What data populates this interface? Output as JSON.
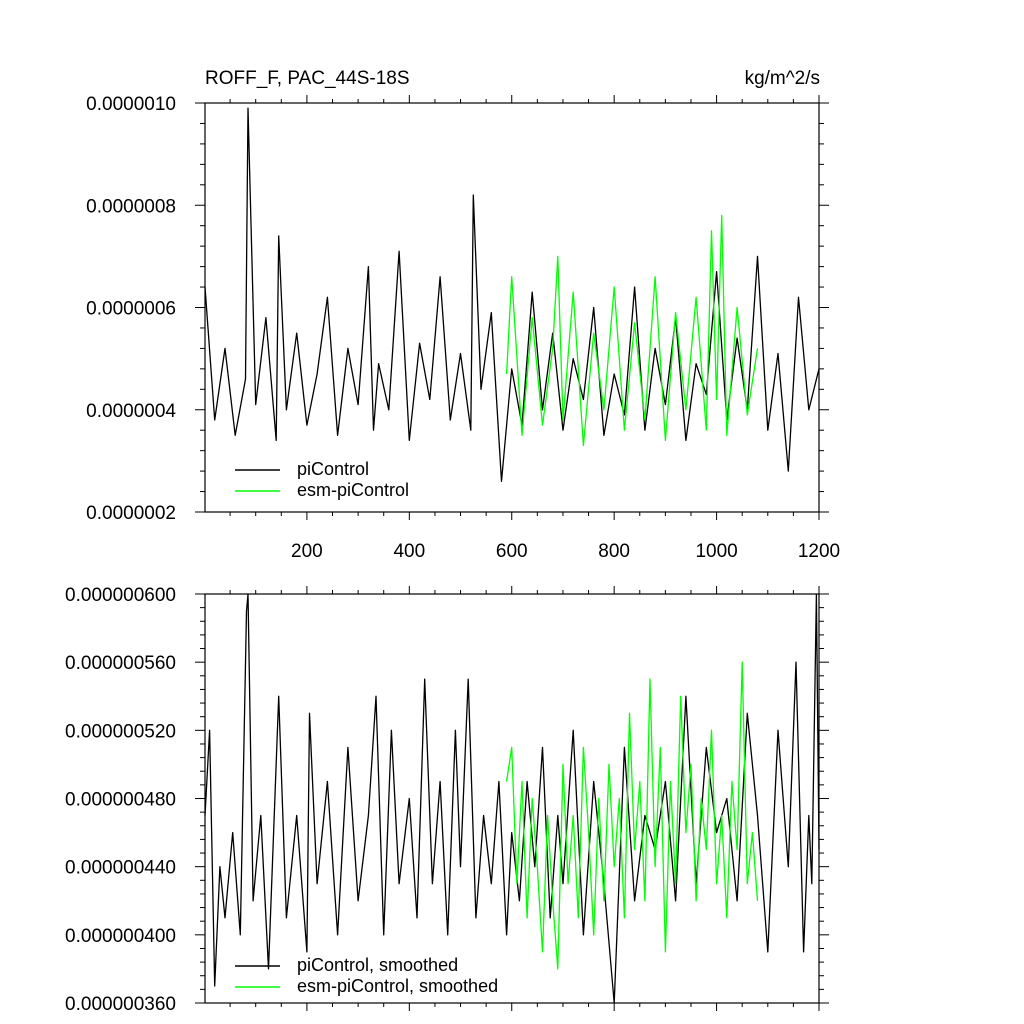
{
  "chart_data": [
    {
      "type": "line",
      "title": "ROFF_F, PAC_44S-18S",
      "units": "kg/m^2/s",
      "xlim": [
        1,
        1200
      ],
      "ylim": [
        2e-07,
        1e-06
      ],
      "x_ticks": [
        200,
        400,
        600,
        800,
        1000,
        1200
      ],
      "x_tick_labels": [
        "200",
        "400",
        "600",
        "800",
        "1000",
        "1200"
      ],
      "y_ticks": [
        2e-07,
        4e-07,
        6e-07,
        8e-07,
        1e-06
      ],
      "y_tick_labels": [
        "0.0000002",
        "0.0000004",
        "0.0000006",
        "0.0000008",
        "0.0000010"
      ],
      "legend": {
        "placement": "bottom-left"
      },
      "series": [
        {
          "name": "piControl",
          "color": "#000000",
          "x": [
            1,
            20,
            40,
            60,
            80,
            85,
            100,
            120,
            140,
            145,
            160,
            180,
            200,
            220,
            240,
            260,
            280,
            300,
            320,
            330,
            340,
            360,
            380,
            400,
            420,
            440,
            460,
            480,
            500,
            520,
            525,
            540,
            560,
            580,
            600,
            620,
            640,
            660,
            680,
            700,
            720,
            740,
            760,
            780,
            800,
            820,
            840,
            860,
            880,
            900,
            920,
            940,
            960,
            980,
            1000,
            1020,
            1040,
            1060,
            1080,
            1100,
            1120,
            1140,
            1160,
            1180,
            1200
          ],
          "y": [
            6.4e-07,
            3.8e-07,
            5.2e-07,
            3.5e-07,
            4.6e-07,
            9.9e-07,
            4.1e-07,
            5.8e-07,
            3.4e-07,
            7.4e-07,
            4e-07,
            5.5e-07,
            3.7e-07,
            4.7e-07,
            6.2e-07,
            3.5e-07,
            5.2e-07,
            4.1e-07,
            6.8e-07,
            3.6e-07,
            4.9e-07,
            4e-07,
            7.1e-07,
            3.4e-07,
            5.3e-07,
            4.2e-07,
            6.6e-07,
            3.8e-07,
            5.1e-07,
            3.6e-07,
            8.2e-07,
            4.4e-07,
            5.9e-07,
            2.6e-07,
            4.8e-07,
            3.7e-07,
            6.3e-07,
            4e-07,
            5.5e-07,
            3.6e-07,
            5e-07,
            4.2e-07,
            6e-07,
            3.5e-07,
            4.7e-07,
            3.9e-07,
            6.4e-07,
            3.6e-07,
            5.2e-07,
            4.1e-07,
            5.8e-07,
            3.4e-07,
            4.9e-07,
            4.3e-07,
            6.7e-07,
            3.8e-07,
            5.4e-07,
            4e-07,
            7e-07,
            3.6e-07,
            5.1e-07,
            2.8e-07,
            6.2e-07,
            4e-07,
            4.8e-07
          ]
        },
        {
          "name": "esm-piControl",
          "color": "#00ff00",
          "x": [
            590,
            600,
            620,
            640,
            660,
            680,
            690,
            700,
            720,
            740,
            760,
            780,
            800,
            820,
            840,
            860,
            880,
            900,
            920,
            940,
            960,
            980,
            990,
            1000,
            1010,
            1020,
            1040,
            1060,
            1080
          ],
          "y": [
            4.7e-07,
            6.6e-07,
            3.5e-07,
            5.8e-07,
            3.7e-07,
            5.2e-07,
            7e-07,
            3.8e-07,
            6.3e-07,
            3.3e-07,
            5.5e-07,
            4e-07,
            6.4e-07,
            3.6e-07,
            5.7e-07,
            3.8e-07,
            6.6e-07,
            3.4e-07,
            5.9e-07,
            4e-07,
            6.2e-07,
            3.6e-07,
            7.5e-07,
            4.2e-07,
            7.8e-07,
            3.5e-07,
            6e-07,
            3.9e-07,
            5.2e-07
          ]
        }
      ]
    },
    {
      "type": "line",
      "xlim": [
        1,
        1200
      ],
      "ylim": [
        3.6e-07,
        6e-07
      ],
      "x_ticks": [
        200,
        400,
        600,
        800,
        1000,
        1200
      ],
      "y_ticks": [
        3.6e-07,
        4e-07,
        4.4e-07,
        4.8e-07,
        5.2e-07,
        5.6e-07,
        6e-07
      ],
      "y_tick_labels": [
        "0.000000360",
        "0.000000400",
        "0.000000440",
        "0.000000480",
        "0.000000520",
        "0.000000560",
        "0.000000600"
      ],
      "legend": {
        "placement": "bottom-left"
      },
      "series": [
        {
          "name": "piControl, smoothed",
          "color": "#000000",
          "x": [
            1,
            10,
            20,
            30,
            40,
            55,
            70,
            82,
            85,
            95,
            110,
            125,
            145,
            160,
            180,
            200,
            205,
            220,
            240,
            260,
            280,
            300,
            320,
            335,
            350,
            365,
            380,
            400,
            415,
            430,
            445,
            460,
            475,
            490,
            500,
            515,
            530,
            545,
            560,
            575,
            590,
            600,
            615,
            630,
            645,
            660,
            675,
            690,
            700,
            720,
            740,
            760,
            780,
            800,
            820,
            840,
            860,
            880,
            900,
            920,
            940,
            960,
            980,
            1000,
            1020,
            1040,
            1060,
            1080,
            1100,
            1120,
            1140,
            1155,
            1170,
            1180,
            1186,
            1195,
            1200
          ],
          "y": [
            4.7e-07,
            5.2e-07,
            3.7e-07,
            4.4e-07,
            4.1e-07,
            4.6e-07,
            4e-07,
            5.9e-07,
            6e-07,
            4.2e-07,
            4.7e-07,
            3.8e-07,
            5.4e-07,
            4.1e-07,
            4.7e-07,
            3.9e-07,
            5.3e-07,
            4.3e-07,
            4.9e-07,
            4e-07,
            5.1e-07,
            4.2e-07,
            4.7e-07,
            5.4e-07,
            4e-07,
            5.2e-07,
            4.3e-07,
            4.8e-07,
            4.1e-07,
            5.5e-07,
            4.3e-07,
            4.9e-07,
            4e-07,
            5.2e-07,
            4.4e-07,
            5.5e-07,
            4.1e-07,
            4.7e-07,
            4.3e-07,
            4.9e-07,
            4e-07,
            4.6e-07,
            4.2e-07,
            4.9e-07,
            4.4e-07,
            5.1e-07,
            4.1e-07,
            4.7e-07,
            4.3e-07,
            5.2e-07,
            4e-07,
            4.9e-07,
            4.3e-07,
            3.6e-07,
            5.1e-07,
            4.2e-07,
            4.7e-07,
            4.5e-07,
            4.9e-07,
            4.2e-07,
            5.4e-07,
            4.3e-07,
            5.1e-07,
            4.6e-07,
            4.8e-07,
            4.2e-07,
            5.3e-07,
            4.7e-07,
            3.9e-07,
            5.2e-07,
            4.4e-07,
            5.6e-07,
            3.9e-07,
            4.7e-07,
            4.3e-07,
            6e-07,
            4.5e-07
          ]
        },
        {
          "name": "esm-piControl, smoothed",
          "color": "#00ff00",
          "x": [
            590,
            600,
            610,
            620,
            630,
            640,
            650,
            660,
            670,
            680,
            690,
            700,
            710,
            720,
            730,
            740,
            750,
            760,
            770,
            780,
            790,
            800,
            810,
            820,
            830,
            840,
            850,
            860,
            870,
            880,
            890,
            900,
            910,
            920,
            930,
            940,
            950,
            960,
            970,
            980,
            990,
            1000,
            1010,
            1020,
            1030,
            1040,
            1050,
            1060,
            1070,
            1080
          ],
          "y": [
            4.9e-07,
            5.1e-07,
            4.3e-07,
            4.9e-07,
            4.1e-07,
            4.8e-07,
            4.4e-07,
            3.9e-07,
            4.7e-07,
            4.2e-07,
            3.8e-07,
            5e-07,
            4.3e-07,
            4.7e-07,
            4.1e-07,
            5.1e-07,
            4.6e-07,
            4e-07,
            4.8e-07,
            4.2e-07,
            5e-07,
            4.4e-07,
            4.8e-07,
            4.1e-07,
            5.3e-07,
            4.5e-07,
            4.9e-07,
            4.2e-07,
            5.5e-07,
            4.4e-07,
            5.1e-07,
            3.9e-07,
            4.9e-07,
            4.3e-07,
            5.4e-07,
            4.6e-07,
            5e-07,
            4.2e-07,
            4.8e-07,
            4.5e-07,
            5.2e-07,
            4.3e-07,
            4.7e-07,
            4.1e-07,
            4.9e-07,
            4.5e-07,
            5.6e-07,
            4.3e-07,
            4.6e-07,
            4.2e-07
          ]
        }
      ]
    }
  ]
}
